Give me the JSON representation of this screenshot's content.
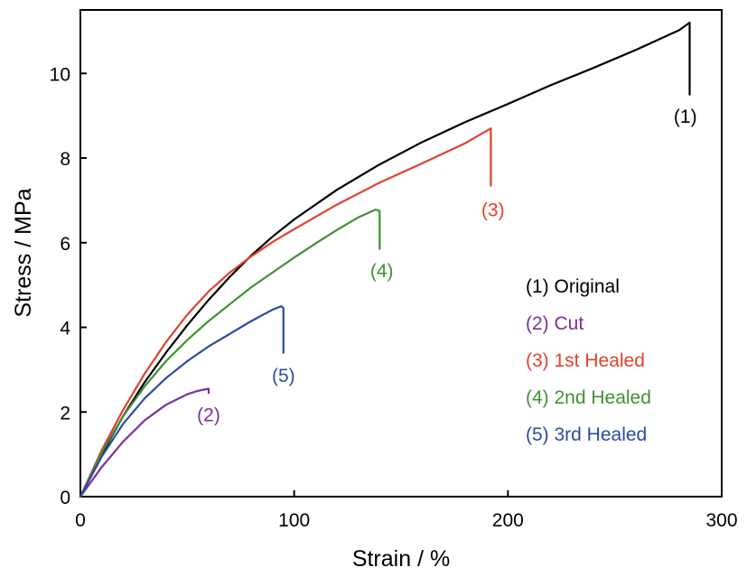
{
  "chart_data": {
    "type": "line",
    "title": "",
    "xlabel": "Strain / %",
    "ylabel": "Stress / MPa",
    "xlim": [
      0,
      300
    ],
    "ylim": [
      0,
      11.5
    ],
    "xticks": [
      "0",
      "100",
      "200",
      "300"
    ],
    "xtick_values": [
      0,
      100,
      200,
      300
    ],
    "yticks": [
      "0",
      "2",
      "4",
      "6",
      "8",
      "10"
    ],
    "ytick_values": [
      0,
      2,
      4,
      6,
      8,
      10
    ],
    "grid": false,
    "legend_position": "center-right",
    "series": [
      {
        "name": "(1) Original",
        "label": "(1)",
        "color": "#000000",
        "x": [
          0,
          10,
          20,
          30,
          40,
          50,
          60,
          70,
          80,
          90,
          100,
          120,
          140,
          160,
          180,
          200,
          220,
          240,
          260,
          280,
          285,
          285
        ],
        "y": [
          0,
          1.0,
          1.9,
          2.7,
          3.4,
          4.05,
          4.65,
          5.2,
          5.7,
          6.15,
          6.55,
          7.25,
          7.85,
          8.38,
          8.85,
          9.28,
          9.72,
          10.13,
          10.56,
          11.02,
          11.2,
          9.5
        ],
        "end_label_pos": [
          283,
          9.0
        ]
      },
      {
        "name": "(2) Cut",
        "label": "(2)",
        "color": "#7b2fa0",
        "x": [
          0,
          5,
          10,
          20,
          30,
          40,
          50,
          55,
          60,
          60
        ],
        "y": [
          0,
          0.35,
          0.7,
          1.3,
          1.8,
          2.17,
          2.42,
          2.5,
          2.55,
          2.45
        ],
        "end_label_pos": [
          60,
          1.95
        ]
      },
      {
        "name": "(3) 1st Healed",
        "label": "(3)",
        "color": "#e2412a",
        "x": [
          0,
          10,
          20,
          30,
          40,
          50,
          60,
          70,
          80,
          90,
          100,
          120,
          140,
          160,
          180,
          192,
          192
        ],
        "y": [
          0,
          1.1,
          2.05,
          2.9,
          3.65,
          4.3,
          4.85,
          5.3,
          5.68,
          6.02,
          6.32,
          6.9,
          7.42,
          7.88,
          8.35,
          8.7,
          7.35
        ],
        "end_label_pos": [
          193,
          6.8
        ]
      },
      {
        "name": "(4) 2nd Healed",
        "label": "(4)",
        "color": "#3f9232",
        "x": [
          0,
          10,
          20,
          30,
          40,
          50,
          60,
          70,
          80,
          90,
          100,
          110,
          120,
          130,
          138,
          140,
          140
        ],
        "y": [
          0,
          1.05,
          1.9,
          2.6,
          3.2,
          3.7,
          4.15,
          4.55,
          4.95,
          5.3,
          5.65,
          5.98,
          6.3,
          6.6,
          6.78,
          6.75,
          5.85
        ],
        "end_label_pos": [
          141,
          5.35
        ]
      },
      {
        "name": "(5) 3rd Healed",
        "label": "(5)",
        "color": "#2e4aa3",
        "x": [
          0,
          10,
          20,
          30,
          40,
          50,
          60,
          70,
          80,
          90,
          94,
          95,
          95
        ],
        "y": [
          0,
          0.95,
          1.72,
          2.32,
          2.8,
          3.2,
          3.55,
          3.85,
          4.15,
          4.42,
          4.5,
          4.45,
          3.4
        ],
        "end_label_pos": [
          95,
          2.88
        ]
      }
    ]
  }
}
